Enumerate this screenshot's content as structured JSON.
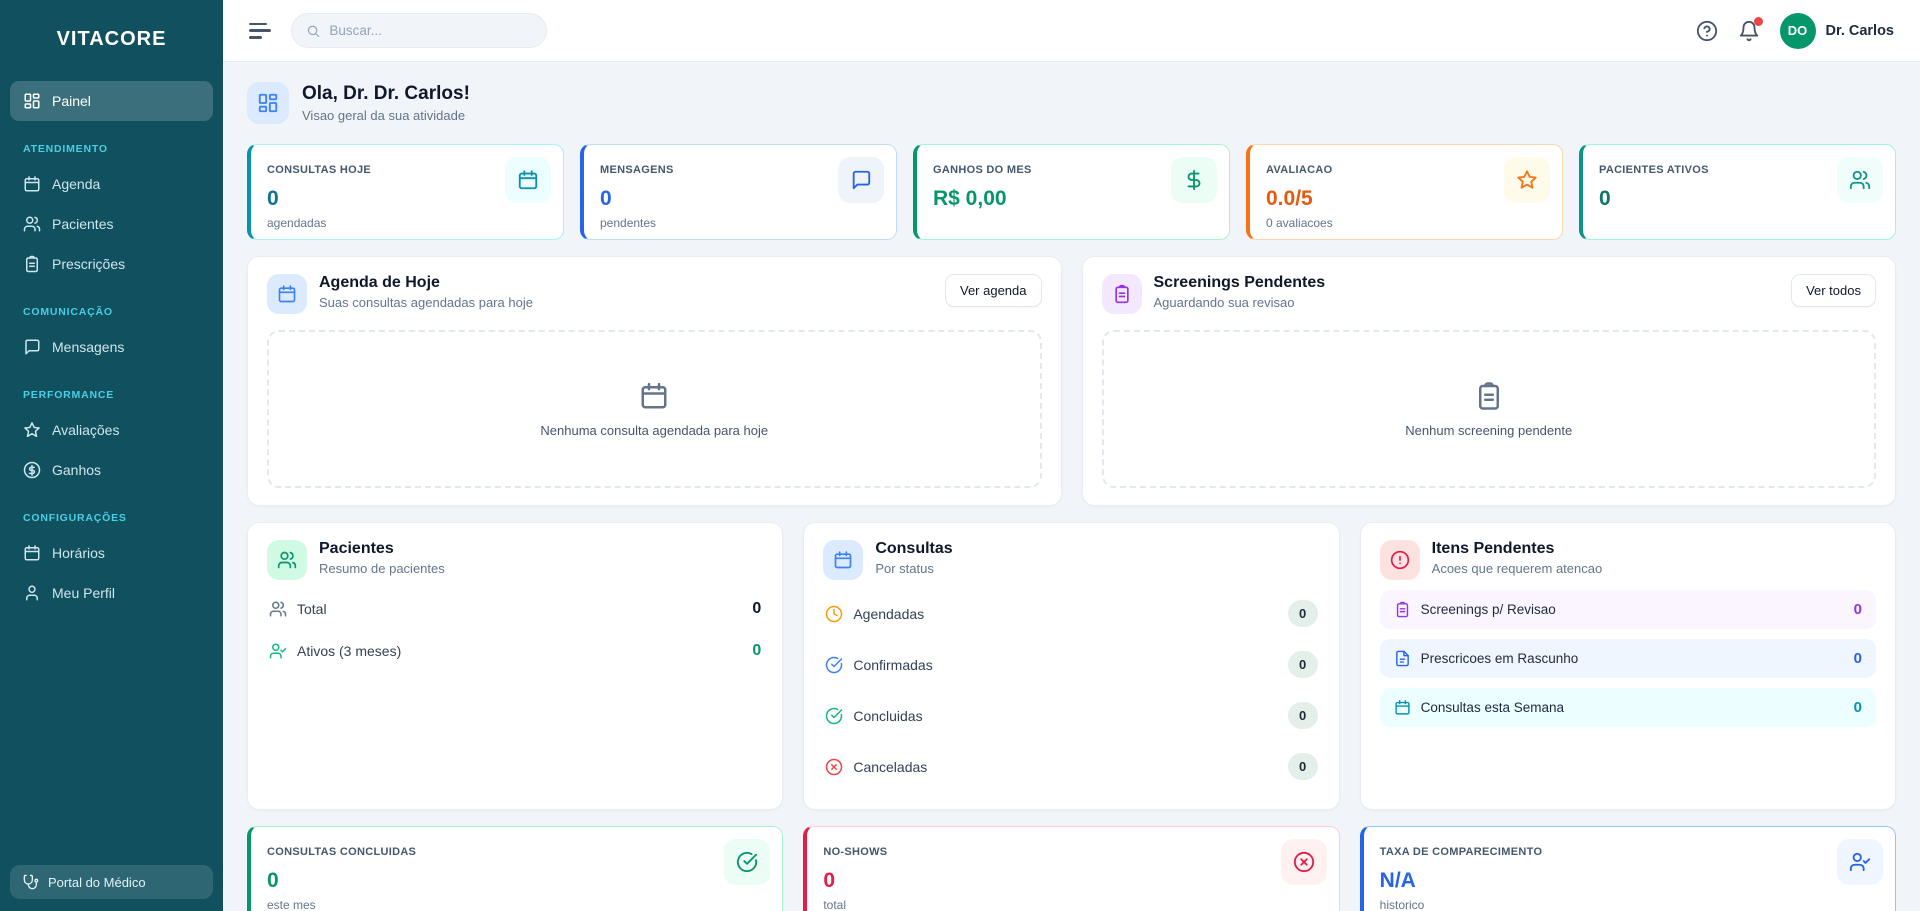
{
  "colors": {
    "sidebar_bg": "#11505f",
    "sidebar_accent": "#49cfe4",
    "avatar_bg": "#059669",
    "notification_dot": "#ef4444",
    "cyan": "#0891b2",
    "blue": "#2563eb",
    "green": "#059669",
    "orange": "#f97316",
    "teal": "#0d9488",
    "red": "#e11d48",
    "purple": "#9333ea"
  },
  "sidebar": {
    "logo": "VITACORE",
    "active_item": "Painel",
    "sections": [
      {
        "label": "ATENDIMENTO",
        "items": [
          "Agenda",
          "Pacientes",
          "Prescrições"
        ]
      },
      {
        "label": "COMUNICAÇÃO",
        "items": [
          "Mensagens"
        ]
      },
      {
        "label": "PERFORMANCE",
        "items": [
          "Avaliações",
          "Ganhos"
        ]
      },
      {
        "label": "CONFIGURAÇÕES",
        "items": [
          "Horários",
          "Meu Perfil"
        ]
      }
    ],
    "footer": "Portal do Médico"
  },
  "topbar": {
    "search_placeholder": "Buscar...",
    "user_initials": "DO",
    "user_name": "Dr. Carlos"
  },
  "greeting": {
    "title": "Ola, Dr. Dr. Carlos!",
    "subtitle": "Visao geral da sua atividade"
  },
  "stats": [
    {
      "label": "CONSULTAS HOJE",
      "value": "0",
      "sublabel": "agendadas",
      "accent": "#0891b2"
    },
    {
      "label": "MENSAGENS",
      "value": "0",
      "sublabel": "pendentes",
      "accent": "#2563eb"
    },
    {
      "label": "GANHOS DO MES",
      "value": "R$ 0,00",
      "sublabel": "",
      "accent": "#059669"
    },
    {
      "label": "AVALIACAO",
      "value": "0.0/5",
      "sublabel": "0 avaliacoes",
      "accent": "#f97316"
    },
    {
      "label": "PACIENTES ATIVOS",
      "value": "0",
      "sublabel": "",
      "accent": "#0d9488"
    }
  ],
  "agenda_card": {
    "title": "Agenda de Hoje",
    "subtitle": "Suas consultas agendadas para hoje",
    "button": "Ver agenda",
    "empty": "Nenhuma consulta agendada para hoje"
  },
  "screenings_card": {
    "title": "Screenings Pendentes",
    "subtitle": "Aguardando sua revisao",
    "button": "Ver todos",
    "empty": "Nenhum screening pendente"
  },
  "pacientes_card": {
    "title": "Pacientes",
    "subtitle": "Resumo de pacientes",
    "rows": [
      {
        "label": "Total",
        "value": "0"
      },
      {
        "label": "Ativos (3 meses)",
        "value": "0"
      }
    ]
  },
  "consultas_card": {
    "title": "Consultas",
    "subtitle": "Por status",
    "rows": [
      {
        "label": "Agendadas",
        "value": "0"
      },
      {
        "label": "Confirmadas",
        "value": "0"
      },
      {
        "label": "Concluidas",
        "value": "0"
      },
      {
        "label": "Canceladas",
        "value": "0"
      }
    ]
  },
  "pendentes_card": {
    "title": "Itens Pendentes",
    "subtitle": "Acoes que requerem atencao",
    "rows": [
      {
        "label": "Screenings p/ Revisao",
        "value": "0"
      },
      {
        "label": "Prescricoes em Rascunho",
        "value": "0"
      },
      {
        "label": "Consultas esta Semana",
        "value": "0"
      }
    ]
  },
  "bottom_stats": [
    {
      "label": "CONSULTAS CONCLUIDAS",
      "value": "0",
      "sublabel": "este mes"
    },
    {
      "label": "NO-SHOWS",
      "value": "0",
      "sublabel": "total"
    },
    {
      "label": "TAXA DE COMPARECIMENTO",
      "value": "N/A",
      "sublabel": "historico"
    }
  ]
}
